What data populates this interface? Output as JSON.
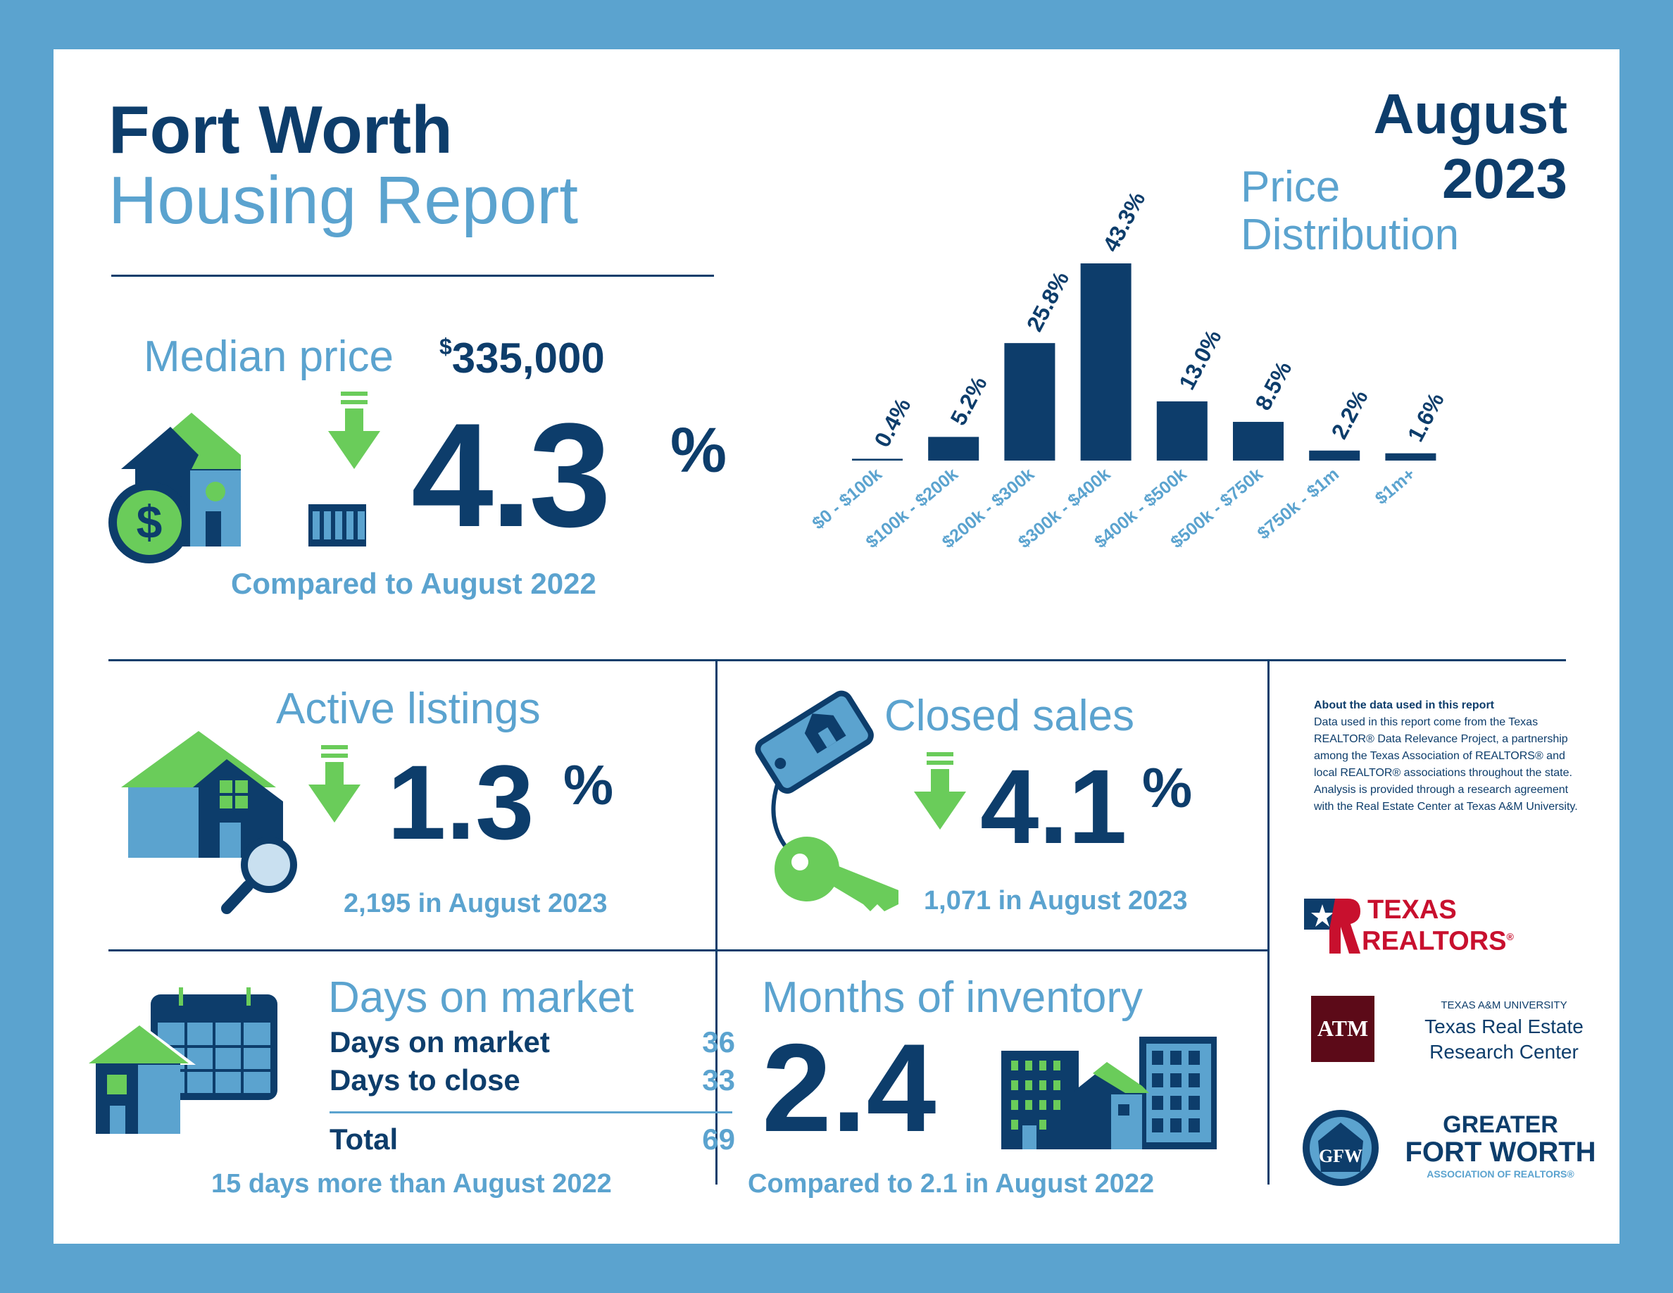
{
  "header": {
    "title_bold": "Fort Worth",
    "title_light": "Housing Report",
    "month": "August",
    "year": "2023"
  },
  "median_price": {
    "label": "Median price",
    "currency_symbol": "$",
    "value": "335,000",
    "change": "4.3",
    "change_unit": "%",
    "direction": "down",
    "comparison": "Compared to August 2022"
  },
  "price_distribution": {
    "title_line1": "Price",
    "title_line2": "Distribution"
  },
  "chart_data": {
    "type": "bar",
    "title": "Price Distribution",
    "categories": [
      "$0 - $100k",
      "$100k - $200k",
      "$200k - $300k",
      "$300k - $400k",
      "$400k - $500k",
      "$500k - $750k",
      "$750k - $1m",
      "$1m+"
    ],
    "values": [
      0.4,
      5.2,
      25.8,
      43.3,
      13.0,
      8.5,
      2.2,
      1.6
    ],
    "value_labels": [
      "0.4%",
      "5.2%",
      "25.8%",
      "43.3%",
      "13.0%",
      "8.5%",
      "2.2%",
      "1.6%"
    ],
    "ylim": [
      0,
      43.3
    ],
    "grid": false,
    "bar_color": "#0d3d6b"
  },
  "active_listings": {
    "label": "Active listings",
    "change": "1.3",
    "change_unit": "%",
    "direction": "down",
    "detail": "2,195 in August 2023"
  },
  "closed_sales": {
    "label": "Closed sales",
    "change": "4.1",
    "change_unit": "%",
    "direction": "down",
    "detail": "1,071 in August 2023"
  },
  "days_on_market": {
    "label": "Days on market",
    "rows": [
      {
        "label": "Days on market",
        "value": "36"
      },
      {
        "label": "Days to close",
        "value": "33"
      }
    ],
    "total_label": "Total",
    "total_value": "69",
    "comparison": "15 days more than August 2022"
  },
  "months_inventory": {
    "label": "Months of inventory",
    "value": "2.4",
    "comparison": "Compared to 2.1 in August 2022"
  },
  "about": {
    "heading": "About the data used in this report",
    "body": "Data used in this report come from the Texas REALTOR® Data Relevance Project, a partnership among the Texas Association of REALTORS® and local REALTOR® associations throughout the state. Analysis is provided through a research agreement with the Real Estate Center at Texas A&M University."
  },
  "logos": {
    "texas_realtors_line1": "TEXAS",
    "texas_realtors_line2": "REALTORS",
    "texas_realtors_reg": "®",
    "tamu_line1": "TEXAS A&M UNIVERSITY",
    "tamu_line2": "Texas Real Estate",
    "tamu_line3": "Research Center",
    "tamu_mark": "ATM",
    "gfw_line1": "GREATER",
    "gfw_line2": "FORT WORTH",
    "gfw_line3": "ASSOCIATION OF REALTORS®",
    "gfw_mark": "GFW"
  },
  "colors": {
    "navy": "#0d3d6b",
    "light_blue": "#5ba3cf",
    "green": "#6acc5a",
    "maroon": "#5c0a18",
    "red": "#c8102e"
  },
  "icons": [
    "house-with-dollar-icon",
    "down-arrow-icon",
    "house-with-magnifier-icon",
    "key-tag-icon",
    "calendar-house-icon",
    "buildings-icon"
  ]
}
